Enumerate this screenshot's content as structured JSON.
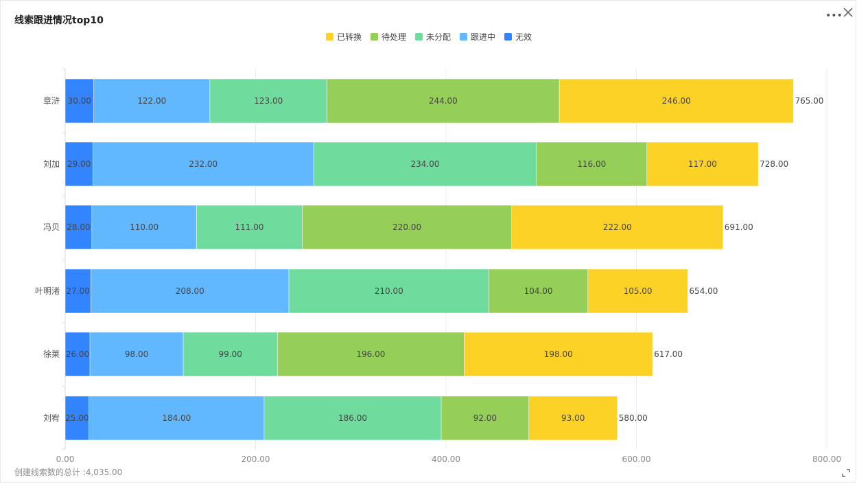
{
  "header": {
    "title": "线索跟进情况top10"
  },
  "toolbar": {
    "more_icon": "more-icon",
    "close_icon": "close-icon",
    "expand_icon": "expand-icon"
  },
  "footer": {
    "label": "创建线索数的总计 :",
    "value": "4,035.00"
  },
  "chart_data": {
    "type": "bar",
    "orientation": "horizontal",
    "stacked": true,
    "title": "线索跟进情况top10",
    "xlabel": "",
    "ylabel": "",
    "xlim": [
      0,
      800
    ],
    "x_ticks": [
      "0.00",
      "200.00",
      "400.00",
      "600.00",
      "800.00"
    ],
    "grid": true,
    "legend_position": "top-center",
    "categories": [
      "章浒",
      "刘加",
      "冯贝",
      "叶明渚",
      "徐莱",
      "刘宥"
    ],
    "series": [
      {
        "name": "无效",
        "color": "#3285ff",
        "values": [
          30,
          29,
          28,
          27,
          26,
          25
        ],
        "labels": [
          "30.00",
          "29.00",
          "28.00",
          "27.00",
          "26.00",
          "25.00"
        ]
      },
      {
        "name": "跟进中",
        "color": "#61b8ff",
        "values": [
          122,
          232,
          110,
          208,
          98,
          184
        ],
        "labels": [
          "122.00",
          "232.00",
          "110.00",
          "208.00",
          "98.00",
          "184.00"
        ]
      },
      {
        "name": "未分配",
        "color": "#6fdc9e",
        "values": [
          123,
          234,
          111,
          210,
          99,
          186
        ],
        "labels": [
          "123.00",
          "234.00",
          "111.00",
          "210.00",
          "99.00",
          "186.00"
        ]
      },
      {
        "name": "待处理",
        "color": "#95cf57",
        "values": [
          244,
          116,
          220,
          104,
          196,
          92
        ],
        "labels": [
          "244.00",
          "116.00",
          "220.00",
          "104.00",
          "196.00",
          "92.00"
        ]
      },
      {
        "name": "已转换",
        "color": "#fdd226",
        "values": [
          246,
          117,
          222,
          105,
          198,
          93
        ],
        "labels": [
          "246.00",
          "117.00",
          "222.00",
          "105.00",
          "198.00",
          "93.00"
        ]
      }
    ],
    "totals": [
      "765.00",
      "728.00",
      "691.00",
      "654.00",
      "617.00",
      "580.00"
    ],
    "legend_order": [
      "已转换",
      "待处理",
      "未分配",
      "跟进中",
      "无效"
    ]
  }
}
